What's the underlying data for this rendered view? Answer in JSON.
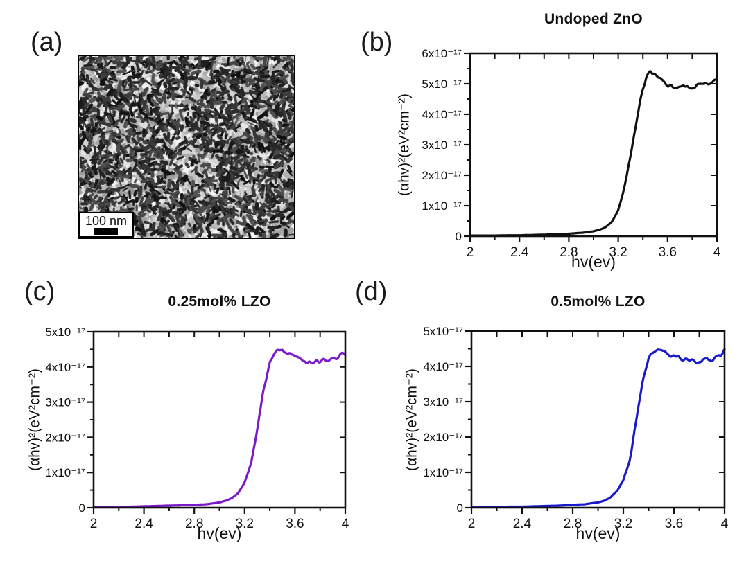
{
  "panels": {
    "a": {
      "label": "(a)",
      "scale_bar_label": "100 nm"
    },
    "b": {
      "label": "(b)"
    },
    "c": {
      "label": "(c)"
    },
    "d": {
      "label": "(d)"
    }
  },
  "chart_data": [
    {
      "type": "line",
      "title": "Undoped ZnO",
      "xlabel": "hv(ev)",
      "ylabel": "(αhv)²(eV²cm⁻²)",
      "xlim": [
        2,
        4
      ],
      "ylim": [
        0,
        6e-17
      ],
      "y_max_e17": 6,
      "grid": false,
      "legend": "none",
      "color": "#111111",
      "x_ticks": [
        2,
        2.4,
        2.8,
        3.2,
        3.6,
        4
      ],
      "x_tick_labels": [
        "2",
        "2.4",
        "2.8",
        "3.2",
        "3.6",
        "4"
      ],
      "x_minor_ticks": [
        2.2,
        2.6,
        3.0,
        3.4,
        3.8
      ],
      "y_tick_labels": [
        "0",
        "1x10⁻¹⁷",
        "2x10⁻¹⁷",
        "3x10⁻¹⁷",
        "4x10⁻¹⁷",
        "5x10⁻¹⁷",
        "6x10⁻¹⁷"
      ],
      "x": [
        2.0,
        2.1,
        2.2,
        2.3,
        2.4,
        2.5,
        2.6,
        2.7,
        2.8,
        2.9,
        3.0,
        3.05,
        3.1,
        3.15,
        3.2,
        3.25,
        3.3,
        3.35,
        3.4,
        3.43,
        3.46,
        3.5,
        3.55,
        3.6,
        3.65,
        3.7,
        3.75,
        3.8,
        3.85,
        3.9,
        3.95,
        4.0
      ],
      "y_e17": [
        0.02,
        0.02,
        0.02,
        0.03,
        0.03,
        0.04,
        0.05,
        0.06,
        0.08,
        0.11,
        0.16,
        0.21,
        0.3,
        0.48,
        0.85,
        1.55,
        2.65,
        3.85,
        4.85,
        5.25,
        5.42,
        5.32,
        5.12,
        4.97,
        4.9,
        4.88,
        4.93,
        4.88,
        4.95,
        5.0,
        5.02,
        5.18
      ]
    },
    {
      "type": "line",
      "title": "0.25mol% LZO",
      "xlabel": "hv(ev)",
      "ylabel": "(αhv)²(eV²cm⁻²)",
      "xlim": [
        2,
        4
      ],
      "ylim": [
        0,
        5e-17
      ],
      "y_max_e17": 5,
      "grid": false,
      "legend": "none",
      "color": "#7a1ac8",
      "x_ticks": [
        2,
        2.4,
        2.8,
        3.2,
        3.6,
        4
      ],
      "x_tick_labels": [
        "2",
        "2.4",
        "2.8",
        "3.2",
        "3.6",
        "4"
      ],
      "x_minor_ticks": [
        2.2,
        2.6,
        3.0,
        3.4,
        3.8
      ],
      "y_tick_labels": [
        "0",
        "1x10⁻¹⁷",
        "2x10⁻¹⁷",
        "3x10⁻¹⁷",
        "4x10⁻¹⁷",
        "5x10⁻¹⁷"
      ],
      "x": [
        2.0,
        2.1,
        2.2,
        2.3,
        2.4,
        2.5,
        2.6,
        2.7,
        2.8,
        2.9,
        3.0,
        3.05,
        3.1,
        3.15,
        3.2,
        3.25,
        3.3,
        3.35,
        3.4,
        3.43,
        3.46,
        3.5,
        3.55,
        3.6,
        3.65,
        3.7,
        3.75,
        3.8,
        3.85,
        3.9,
        3.95,
        4.0
      ],
      "y_e17": [
        0.02,
        0.02,
        0.02,
        0.03,
        0.04,
        0.05,
        0.06,
        0.07,
        0.08,
        0.1,
        0.15,
        0.2,
        0.28,
        0.42,
        0.72,
        1.25,
        2.25,
        3.35,
        4.1,
        4.35,
        4.45,
        4.5,
        4.38,
        4.3,
        4.22,
        4.15,
        4.13,
        4.18,
        4.2,
        4.25,
        4.3,
        4.42
      ]
    },
    {
      "type": "line",
      "title": "0.5mol% LZO",
      "xlabel": "hv(ev)",
      "ylabel": "(αhv)²(eV²cm⁻²)",
      "xlim": [
        2,
        4
      ],
      "ylim": [
        0,
        5e-17
      ],
      "y_max_e17": 5,
      "grid": false,
      "legend": "none",
      "color": "#1a1acd",
      "x_ticks": [
        2,
        2.4,
        2.8,
        3.2,
        3.6,
        4
      ],
      "x_tick_labels": [
        "2",
        "2.4",
        "2.8",
        "3.2",
        "3.6",
        "4"
      ],
      "x_minor_ticks": [
        2.2,
        2.6,
        3.0,
        3.4,
        3.8
      ],
      "y_tick_labels": [
        "0",
        "1x10⁻¹⁷",
        "2x10⁻¹⁷",
        "3x10⁻¹⁷",
        "4x10⁻¹⁷",
        "5x10⁻¹⁷"
      ],
      "x": [
        2.0,
        2.1,
        2.2,
        2.3,
        2.4,
        2.5,
        2.6,
        2.7,
        2.8,
        2.9,
        3.0,
        3.05,
        3.1,
        3.15,
        3.2,
        3.25,
        3.3,
        3.35,
        3.4,
        3.43,
        3.46,
        3.5,
        3.55,
        3.6,
        3.65,
        3.7,
        3.75,
        3.8,
        3.85,
        3.9,
        3.95,
        4.0
      ],
      "y_e17": [
        0.02,
        0.02,
        0.02,
        0.03,
        0.03,
        0.04,
        0.05,
        0.06,
        0.08,
        0.1,
        0.15,
        0.2,
        0.3,
        0.46,
        0.78,
        1.35,
        2.4,
        3.5,
        4.2,
        4.4,
        4.48,
        4.5,
        4.36,
        4.3,
        4.24,
        4.18,
        4.13,
        4.16,
        4.2,
        4.22,
        4.3,
        4.43
      ]
    }
  ]
}
